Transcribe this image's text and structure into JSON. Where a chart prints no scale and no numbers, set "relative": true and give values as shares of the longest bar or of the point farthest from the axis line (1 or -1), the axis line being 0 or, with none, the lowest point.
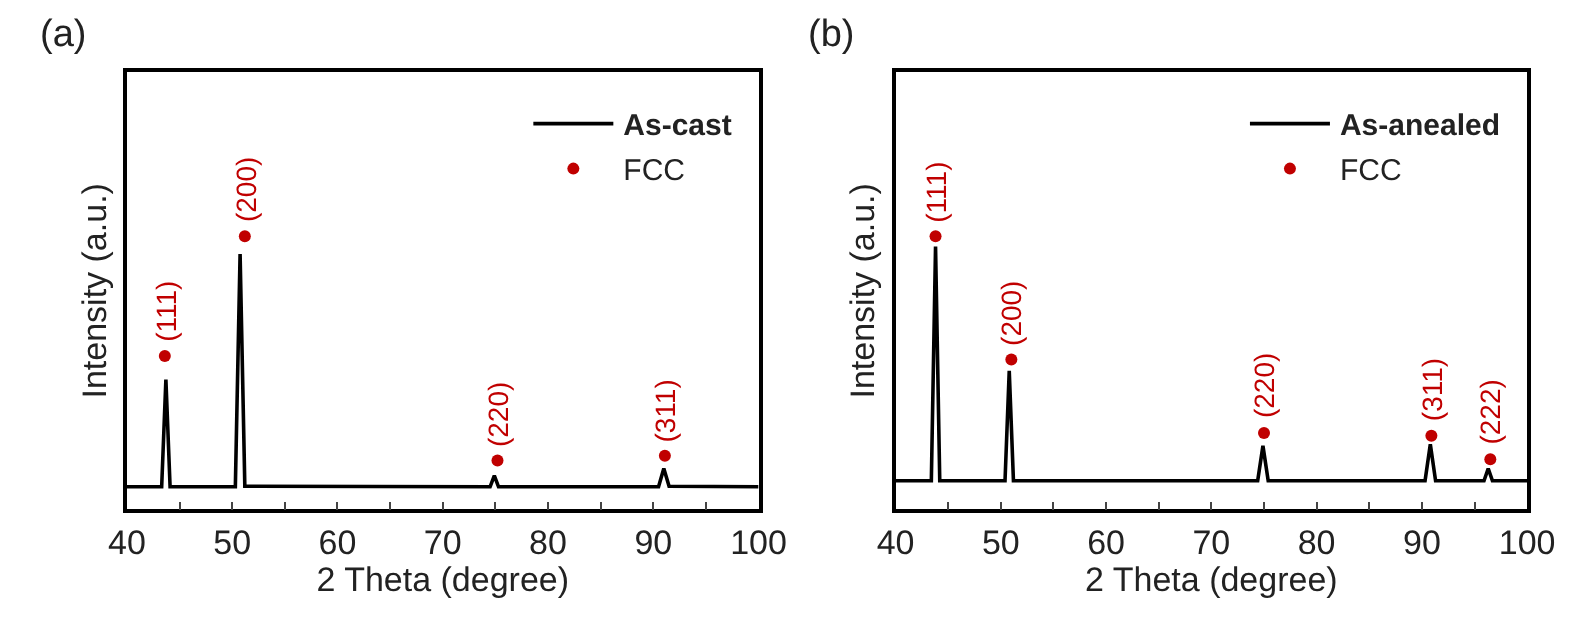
{
  "chart_data": [
    {
      "type": "line",
      "title": "(a)",
      "xlabel": "2 Theta (degree)",
      "ylabel": "Intensity (a.u.)",
      "relative": true,
      "legend": "top right",
      "tick_labels": "x",
      "xlim": [
        40,
        100
      ],
      "xticks": [
        40,
        {
          "value": 45,
          "label": null
        },
        50,
        {
          "value": 55,
          "label": null
        },
        60,
        {
          "value": 65,
          "label": null
        },
        70,
        {
          "value": 75,
          "label": null
        },
        80,
        {
          "value": 85,
          "label": null
        },
        90,
        {
          "value": 95,
          "label": null
        },
        100
      ],
      "series": [
        {
          "name": "As-cast",
          "color": "#000000",
          "x": [
            40,
            43.3,
            43.7,
            44.1,
            50.3,
            50.75,
            51.2,
            74.5,
            74.9,
            75.3,
            90.5,
            91.0,
            91.5,
            100
          ],
          "values": [
            0.082,
            0.082,
            0.475,
            0.082,
            0.082,
            0.935,
            0.084,
            0.082,
            0.123,
            0.082,
            0.082,
            0.149,
            0.084,
            0.082
          ]
        },
        {
          "name": "FCC",
          "type": "scatter",
          "color": "#c00000",
          "x": [
            43.6,
            51.2,
            75.2,
            91.1
          ],
          "values": [
            0.561,
            1,
            0.178,
            0.196
          ]
        }
      ],
      "annotations": [
        {
          "text": "(111)",
          "x": 43.6,
          "y": 0.561
        },
        {
          "text": "(200)",
          "x": 51.2,
          "y": 1
        },
        {
          "text": "(220)",
          "x": 75.2,
          "y": 0.178
        },
        {
          "text": "(311)",
          "x": 91.1,
          "y": 0.196
        }
      ]
    },
    {
      "type": "line",
      "title": "(b)",
      "xlabel": "2 Theta (degree)",
      "ylabel": "Intensity (a.u.)",
      "relative": true,
      "legend": "top right",
      "tick_labels": "x",
      "xlim": [
        40,
        100
      ],
      "xticks": [
        40,
        {
          "value": 45,
          "label": null
        },
        50,
        {
          "value": 55,
          "label": null
        },
        60,
        {
          "value": 65,
          "label": null
        },
        70,
        {
          "value": 75,
          "label": null
        },
        80,
        {
          "value": 85,
          "label": null
        },
        90,
        {
          "value": 95,
          "label": null
        },
        100
      ],
      "series": [
        {
          "name": "As-anealed",
          "color": "#000000",
          "x": [
            40,
            43.4,
            43.8,
            44.2,
            50.4,
            50.8,
            51.2,
            74.4,
            74.9,
            75.4,
            90.3,
            90.8,
            91.3,
            95.9,
            96.3,
            96.7,
            100
          ],
          "values": [
            0.104,
            0.104,
            0.962,
            0.104,
            0.104,
            0.507,
            0.104,
            0.104,
            0.232,
            0.104,
            0.104,
            0.238,
            0.104,
            0.104,
            0.149,
            0.104,
            0.104
          ]
        },
        {
          "name": "FCC",
          "type": "scatter",
          "color": "#c00000",
          "x": [
            43.8,
            51.0,
            75.0,
            90.9,
            96.5
          ],
          "values": [
            1,
            0.548,
            0.279,
            0.269,
            0.183
          ]
        }
      ],
      "annotations": [
        {
          "text": "(111)",
          "x": 43.8,
          "y": 1
        },
        {
          "text": "(200)",
          "x": 51.0,
          "y": 0.548
        },
        {
          "text": "(220)",
          "x": 75.0,
          "y": 0.279
        },
        {
          "text": "(311)",
          "x": 90.9,
          "y": 0.269
        },
        {
          "text": "(222)",
          "x": 96.5,
          "y": 0.183
        }
      ]
    }
  ]
}
